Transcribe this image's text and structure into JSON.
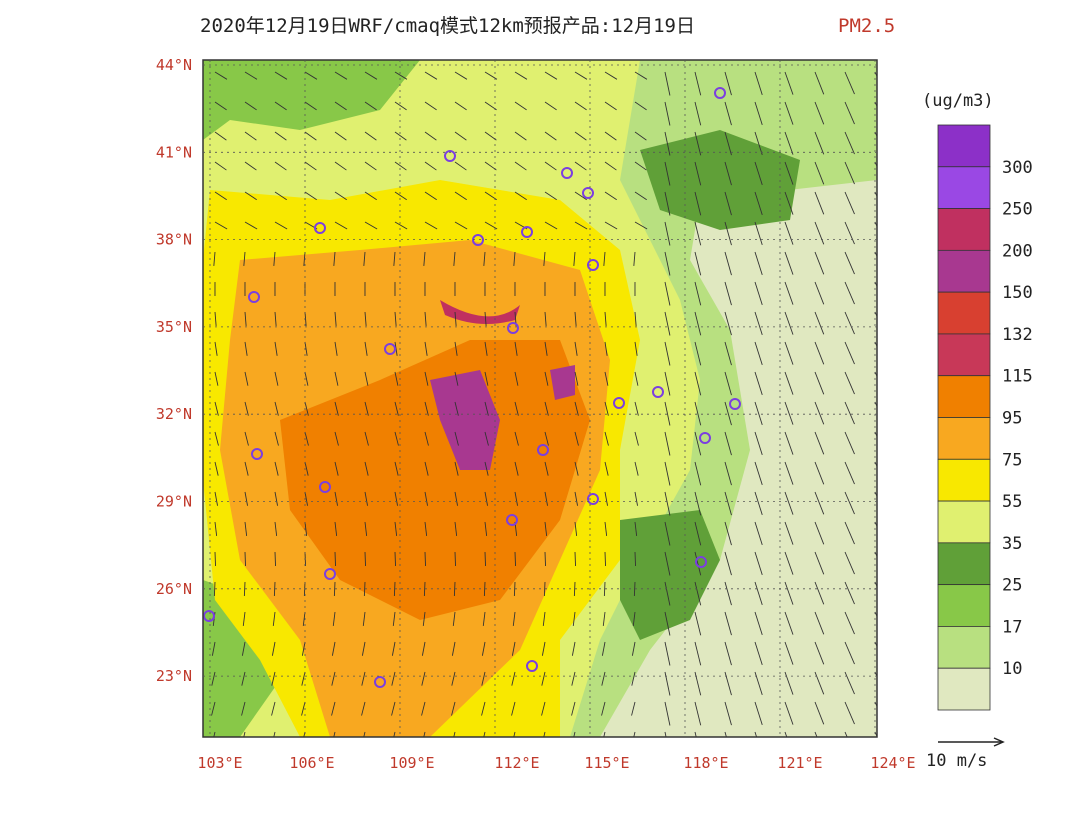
{
  "header": {
    "title": "2020年12月19日WRF/cmaq模式12km预报产品:12月19日",
    "variable": "PM2.5"
  },
  "map": {
    "lat_labels": [
      "44°N",
      "41°N",
      "38°N",
      "35°N",
      "32°N",
      "29°N",
      "26°N",
      "23°N"
    ],
    "lon_labels": [
      "103°E",
      "106°E",
      "109°E",
      "112°E",
      "115°E",
      "118°E",
      "121°E",
      "124°E"
    ]
  },
  "legend": {
    "unit": "(ug/m3)",
    "levels": [
      300,
      250,
      200,
      150,
      132,
      115,
      95,
      75,
      55,
      35,
      25,
      17,
      10
    ],
    "colors": [
      "#8c30c8",
      "#9a48e4",
      "#c03060",
      "#a83890",
      "#d84030",
      "#c83858",
      "#f08000",
      "#f8a820",
      "#f8e800",
      "#e0f070",
      "#60a038",
      "#88c848",
      "#b8e080",
      "#e0e8c0"
    ],
    "wind_scale": "10 m/s"
  }
}
